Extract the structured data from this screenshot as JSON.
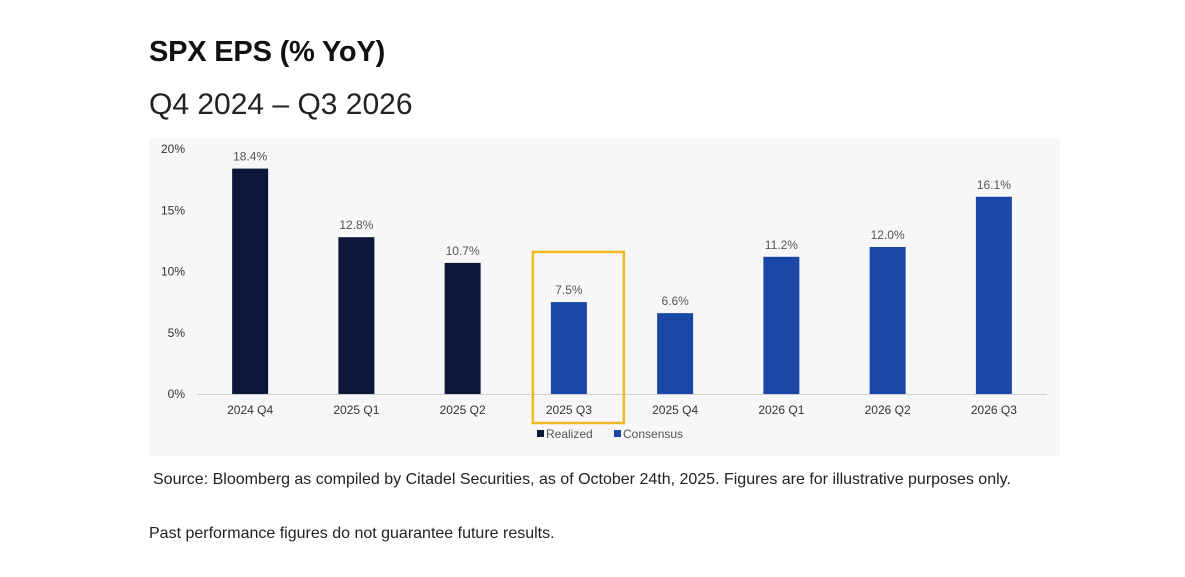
{
  "title": "SPX EPS (% YoY)",
  "subtitle": "Q4 2024 – Q3 2026",
  "source": "Source: Bloomberg as compiled by Citadel Securities, as of October 24th, 2025. Figures are for illustrative purposes only.",
  "disclaimer": "Past performance figures do not guarantee future results.",
  "chart_data": {
    "type": "bar",
    "title": "",
    "xlabel": "",
    "ylabel": "",
    "categories": [
      "2024 Q4",
      "2025 Q1",
      "2025 Q2",
      "2025 Q3",
      "2025 Q4",
      "2026 Q1",
      "2026 Q2",
      "2026 Q3"
    ],
    "values": [
      18.4,
      12.8,
      10.7,
      7.5,
      6.6,
      11.2,
      12.0,
      16.1
    ],
    "data_labels": [
      "18.4%",
      "12.8%",
      "10.7%",
      "7.5%",
      "6.6%",
      "11.2%",
      "12.0%",
      "16.1%"
    ],
    "series_type": [
      "Realized",
      "Realized",
      "Realized",
      "Consensus",
      "Consensus",
      "Consensus",
      "Consensus",
      "Consensus"
    ],
    "series": [
      {
        "name": "Realized",
        "color": "#0b1638"
      },
      {
        "name": "Consensus",
        "color": "#1847a6"
      }
    ],
    "highlighted_category": "2025 Q3",
    "highlight_color": "#f0b823",
    "ylim": [
      0,
      20
    ],
    "yticks": [
      0,
      5,
      10,
      15,
      20
    ],
    "ytick_labels": [
      "0%",
      "5%",
      "10%",
      "15%",
      "20%"
    ],
    "grid": false,
    "legend_position": "bottom-center"
  }
}
